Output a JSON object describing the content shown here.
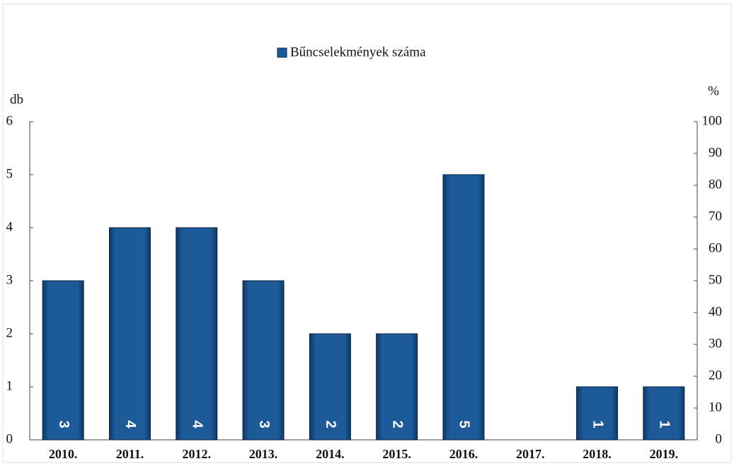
{
  "chart_data": {
    "type": "bar",
    "legend": "top",
    "series": [
      {
        "name": "Bűncselekmények száma",
        "color": "#1d5a9a",
        "values": [
          3,
          4,
          4,
          3,
          2,
          2,
          5,
          0,
          1,
          1
        ]
      }
    ],
    "categories": [
      "2010.",
      "2011.",
      "2012.",
      "2013.",
      "2014.",
      "2015.",
      "2016.",
      "2017.",
      "2018.",
      "2019."
    ],
    "ylabel": "db",
    "ylim": [
      0,
      6
    ],
    "yticks": [
      0,
      1,
      2,
      3,
      4,
      5,
      6
    ],
    "y2label": "%",
    "y2lim": [
      0,
      100
    ],
    "y2ticks": [
      0,
      10,
      20,
      30,
      40,
      50,
      60,
      70,
      80,
      90,
      100
    ]
  }
}
